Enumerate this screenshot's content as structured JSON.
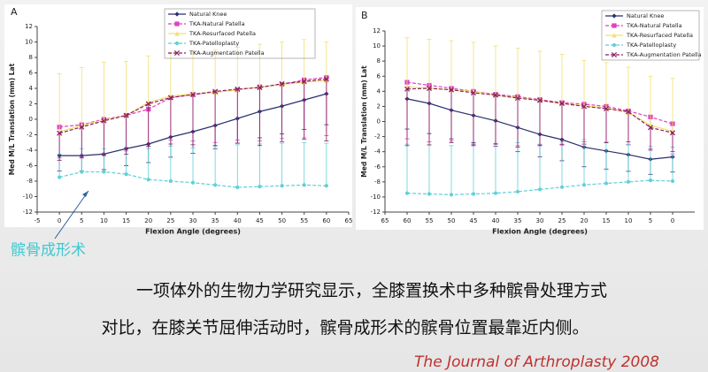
{
  "chart_data": [
    {
      "type": "line",
      "panel_label": "A",
      "x_label": "Flexion Angle (degrees)",
      "y_label": "Med M/L Translation (mm) Lat",
      "annotation": "髌骨成形术",
      "x": [
        0,
        5,
        10,
        15,
        20,
        25,
        30,
        35,
        40,
        45,
        50,
        55,
        60
      ],
      "xlim": [
        -5,
        65
      ],
      "xticks": [
        -5,
        0,
        5,
        10,
        15,
        20,
        25,
        30,
        35,
        40,
        45,
        50,
        55,
        60,
        65
      ],
      "ylim": [
        -12,
        12
      ],
      "yticks": [
        -12,
        -10,
        -8,
        -6,
        -4,
        -2,
        0,
        2,
        4,
        6,
        8,
        10,
        12
      ],
      "series": [
        {
          "name": "Natural Knee",
          "color": "#2a2f6e",
          "marker": "diamond",
          "dash": false,
          "error_direction": "down",
          "values": [
            -4.7,
            -4.7,
            -4.5,
            -3.8,
            -3.2,
            -2.3,
            -1.6,
            -0.8,
            0.1,
            1.0,
            1.7,
            2.5,
            3.3
          ],
          "errors": [
            2,
            2,
            2,
            2.2,
            2.4,
            2.6,
            2.8,
            3,
            3.2,
            3.4,
            3.6,
            3.8,
            4
          ]
        },
        {
          "name": "TKA-Natural Patella",
          "color": "#e040c0",
          "marker": "square",
          "dash": true,
          "error_direction": "down",
          "values": [
            -1.0,
            -0.7,
            0,
            0.5,
            1.3,
            2.8,
            3.2,
            3.5,
            3.8,
            4.2,
            4.5,
            5.1,
            5.4
          ],
          "errors": [
            4,
            4.2,
            4.4,
            4.6,
            4.8,
            5.5,
            6,
            6.5,
            6.5,
            7,
            7,
            7.5,
            7.5
          ]
        },
        {
          "name": "TKA-Resurfaced Patella",
          "color": "#f0e070",
          "marker": "triangle",
          "dash": false,
          "error_direction": "up",
          "values": [
            -1.6,
            -0.8,
            -0.1,
            0.5,
            2.2,
            3.0,
            3.3,
            3.5,
            3.8,
            4.2,
            4.5,
            4.8,
            5.0
          ],
          "errors": [
            7.5,
            7.5,
            7.5,
            7,
            6,
            5.5,
            5.5,
            5.5,
            5.5,
            5.5,
            5.5,
            5.5,
            5
          ]
        },
        {
          "name": "TKA-Patelloplasty",
          "color": "#60d0d8",
          "marker": "circle",
          "dash": true,
          "error_direction": "up",
          "values": [
            -7.5,
            -6.8,
            -6.8,
            -7.1,
            -7.8,
            -8.0,
            -8.2,
            -8.5,
            -8.8,
            -8.7,
            -8.6,
            -8.5,
            -8.6
          ],
          "errors": [
            3,
            3,
            3,
            3.5,
            4,
            4.5,
            4.5,
            5,
            5.5,
            5.5,
            5.5,
            5.5,
            5.5
          ]
        },
        {
          "name": "TKA-Augmentation Patella",
          "color": "#8a2060",
          "marker": "cross",
          "dash": true,
          "error_direction": "down",
          "values": [
            -1.8,
            -1.0,
            -0.2,
            0.5,
            2.0,
            2.8,
            3.2,
            3.6,
            3.9,
            4.1,
            4.6,
            4.9,
            5.2
          ],
          "errors": [
            3.5,
            4,
            4.5,
            5,
            5.5,
            6,
            6.5,
            7,
            7,
            7.5,
            7.5,
            7.5,
            8
          ]
        }
      ]
    },
    {
      "type": "line",
      "panel_label": "B",
      "x_label": "Flexion Angle (degrees)",
      "y_label": "Med M/L Translation (mm) Lat",
      "x": [
        60,
        55,
        50,
        45,
        40,
        35,
        30,
        25,
        20,
        15,
        10,
        5,
        0
      ],
      "xlim": [
        65,
        -5
      ],
      "xticks": [
        65,
        60,
        55,
        50,
        45,
        40,
        35,
        30,
        25,
        20,
        15,
        10,
        5,
        0
      ],
      "ylim": [
        -12,
        12
      ],
      "yticks": [
        -12,
        -10,
        -8,
        -6,
        -4,
        -2,
        0,
        2,
        4,
        6,
        8,
        10,
        12
      ],
      "series": [
        {
          "name": "Natural Knee",
          "color": "#2a2f6e",
          "marker": "diamond",
          "dash": false,
          "error_direction": "down",
          "values": [
            3.0,
            2.4,
            1.5,
            0.8,
            0.1,
            -0.8,
            -1.7,
            -2.4,
            -3.4,
            -3.9,
            -4.4,
            -5.0,
            -4.7
          ],
          "errors": [
            4,
            4,
            3.8,
            3.6,
            3.4,
            3.2,
            3,
            2.8,
            2.6,
            2.4,
            2.2,
            2,
            2
          ]
        },
        {
          "name": "TKA-Natural Patella",
          "color": "#e040c0",
          "marker": "square",
          "dash": true,
          "error_direction": "down",
          "values": [
            5.2,
            4.8,
            4.4,
            4.0,
            3.6,
            3.3,
            2.9,
            2.5,
            2.3,
            2.0,
            1.4,
            0.6,
            -0.3
          ],
          "errors": [
            7.5,
            7.5,
            7,
            7,
            6.5,
            6.5,
            6,
            5.5,
            5,
            4.8,
            4.5,
            4.2,
            4
          ]
        },
        {
          "name": "TKA-Resurfaced Patella",
          "color": "#f0e070",
          "marker": "triangle",
          "dash": false,
          "error_direction": "up",
          "values": [
            4.6,
            4.4,
            4.2,
            4.0,
            3.5,
            3.2,
            2.8,
            2.4,
            2.1,
            1.8,
            1.2,
            -0.5,
            -1.3
          ],
          "errors": [
            6.5,
            6.5,
            6.5,
            6.5,
            6.5,
            6.5,
            6.5,
            6.5,
            6,
            6,
            6,
            6.5,
            7
          ]
        },
        {
          "name": "TKA-Patelloplasty",
          "color": "#60d0d8",
          "marker": "circle",
          "dash": true,
          "error_direction": "up",
          "values": [
            -9.5,
            -9.6,
            -9.7,
            -9.6,
            -9.5,
            -9.3,
            -9.0,
            -8.7,
            -8.4,
            -8.2,
            -8.0,
            -7.8,
            -7.9
          ],
          "errors": [
            6.5,
            6.5,
            6.5,
            6.5,
            6.5,
            6.5,
            6,
            6,
            6,
            5.5,
            5,
            4.5,
            4.5
          ]
        },
        {
          "name": "TKA-Augmentation Patella",
          "color": "#8a2060",
          "marker": "cross",
          "dash": true,
          "error_direction": "down",
          "values": [
            4.3,
            4.4,
            4.2,
            3.8,
            3.5,
            3.1,
            2.8,
            2.4,
            2.0,
            1.7,
            1.3,
            -0.8,
            -1.5
          ],
          "errors": [
            7.5,
            7.5,
            7,
            7,
            6.5,
            6.5,
            6,
            5.5,
            5,
            4.5,
            4,
            3,
            2.5
          ]
        }
      ]
    }
  ],
  "slide": {
    "caption": [
      "一项体外的生物力学研究显示，全膝置换术中多种髌骨处理方式",
      "对比，在膝关节屈伸活动时，髌骨成形术的髌骨位置最靠近内侧。"
    ],
    "source": "The Journal of  Arthroplasty  2008"
  }
}
